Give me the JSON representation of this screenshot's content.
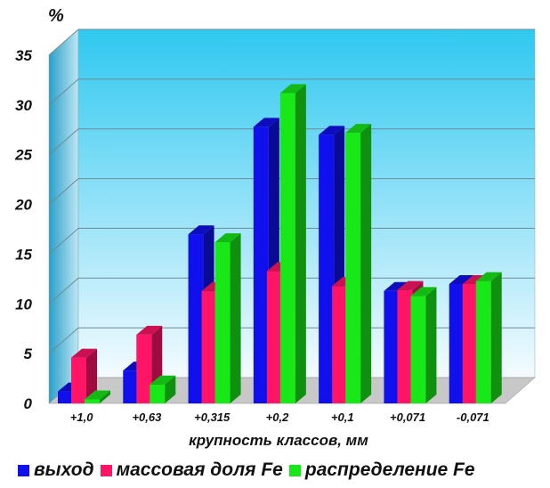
{
  "chart_data": {
    "type": "bar",
    "unit_label": "%",
    "xlabel": "крупность  классов, мм",
    "ylabel": "",
    "ylim": [
      0,
      35
    ],
    "yticks": [
      0,
      5,
      10,
      15,
      20,
      25,
      30,
      35
    ],
    "grid": true,
    "legend_position": "bottom",
    "categories": [
      "+1,0",
      "+0,63",
      "+0,315",
      "+0,2",
      "+0,1",
      "+0,071",
      "-0,071"
    ],
    "series": [
      {
        "name": "выход",
        "color": "#1010ee",
        "values": [
          1.2,
          3.3,
          17,
          27.8,
          27,
          11.3,
          12
        ]
      },
      {
        "name": "массовая доля Fe",
        "color": "#ff1466",
        "values": [
          4.6,
          6.9,
          11.3,
          13.3,
          11.8,
          11.4,
          12
        ]
      },
      {
        "name": "распределение Fe",
        "color": "#18e818",
        "values": [
          0.4,
          1.9,
          16.2,
          31.2,
          27.2,
          10.8,
          12.3
        ]
      }
    ]
  }
}
